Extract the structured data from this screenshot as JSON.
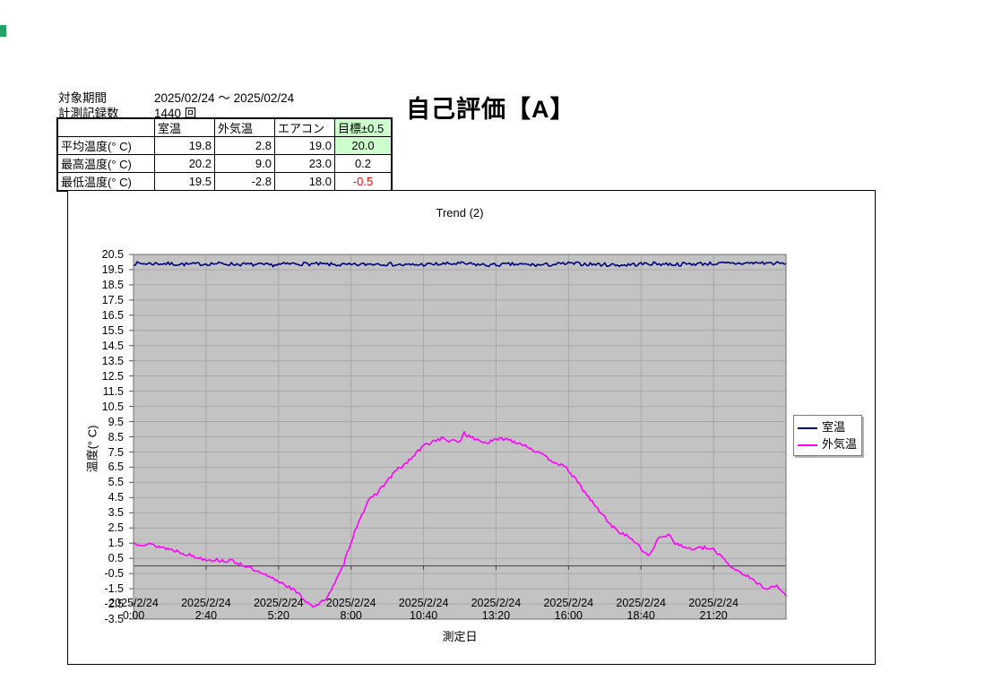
{
  "info": {
    "period_label": "対象期間",
    "period_value": "2025/02/24 ～ 2025/02/24",
    "count_label": "計測記録数",
    "count_value": "1440 回",
    "rating": "自己評価【A】"
  },
  "summary_table": {
    "columns": [
      "",
      "室温",
      "外気温",
      "エアコン",
      "目標±0.5"
    ],
    "rows": [
      {
        "label": "平均温度(° C)",
        "values": [
          "19.8",
          "2.8",
          "19.0",
          "20.0"
        ]
      },
      {
        "label": "最高温度(° C)",
        "values": [
          "20.2",
          "9.0",
          "23.0",
          "0.2"
        ]
      },
      {
        "label": "最低温度(° C)",
        "values": [
          "19.5",
          "-2.8",
          "18.0",
          "-0.5"
        ]
      }
    ],
    "highlight_bg": "#ccffcc",
    "negative_color": "#ff0000"
  },
  "chart_data": {
    "type": "line",
    "title": "Trend (2)",
    "xlabel": "測定日",
    "ylabel": "温度(° C)",
    "ylim": [
      -3.5,
      20.5
    ],
    "y_tick_step": 1.0,
    "x_total_minutes": 1440,
    "grid": true,
    "plot_bg": "#c3c3c3",
    "gridline_color": "#a8a8a8",
    "zero_line_color": "#3f3f3f",
    "border_color": "#707070",
    "legend_position": "right",
    "x_ticks": [
      {
        "minute": 0,
        "date": "2025/2/24",
        "time": "0:00"
      },
      {
        "minute": 160,
        "date": "2025/2/24",
        "time": "2:40"
      },
      {
        "minute": 320,
        "date": "2025/2/24",
        "time": "5:20"
      },
      {
        "minute": 480,
        "date": "2025/2/24",
        "time": "8:00"
      },
      {
        "minute": 640,
        "date": "2025/2/24",
        "time": "10:40"
      },
      {
        "minute": 800,
        "date": "2025/2/24",
        "time": "13:20"
      },
      {
        "minute": 960,
        "date": "2025/2/24",
        "time": "16:00"
      },
      {
        "minute": 1120,
        "date": "2025/2/24",
        "time": "18:40"
      },
      {
        "minute": 1280,
        "date": "2025/2/24",
        "time": "21:20"
      }
    ],
    "series": [
      {
        "name": "室温",
        "color": "#000080",
        "jitter": 0.12,
        "seed": 7,
        "minutes": [
          0,
          60,
          120,
          180,
          240,
          300,
          360,
          420,
          480,
          540,
          600,
          660,
          720,
          780,
          840,
          900,
          960,
          1020,
          1080,
          1140,
          1200,
          1260,
          1320,
          1380,
          1440
        ],
        "values": [
          19.9,
          19.9,
          19.85,
          19.9,
          19.85,
          19.8,
          19.9,
          19.85,
          19.8,
          19.9,
          19.8,
          19.85,
          19.9,
          19.8,
          19.85,
          19.8,
          19.9,
          19.85,
          19.8,
          19.9,
          19.85,
          19.9,
          19.9,
          19.95,
          19.9
        ]
      },
      {
        "name": "外気温",
        "color": "#ff00ff",
        "jitter": 0.12,
        "seed": 13,
        "minutes": [
          0,
          20,
          40,
          60,
          80,
          100,
          120,
          140,
          160,
          180,
          200,
          220,
          240,
          260,
          280,
          300,
          320,
          340,
          360,
          380,
          400,
          420,
          440,
          460,
          480,
          500,
          520,
          540,
          560,
          580,
          600,
          620,
          640,
          660,
          680,
          700,
          720,
          730,
          740,
          760,
          780,
          800,
          820,
          840,
          860,
          880,
          900,
          920,
          940,
          960,
          980,
          1000,
          1020,
          1040,
          1060,
          1080,
          1100,
          1120,
          1140,
          1160,
          1180,
          1200,
          1220,
          1240,
          1260,
          1280,
          1300,
          1320,
          1340,
          1360,
          1380,
          1400,
          1420,
          1440
        ],
        "values": [
          1.5,
          1.45,
          1.4,
          1.25,
          1.1,
          0.95,
          0.75,
          0.55,
          0.45,
          0.4,
          0.35,
          0.3,
          0.1,
          -0.2,
          -0.5,
          -0.75,
          -1.0,
          -1.3,
          -1.75,
          -2.3,
          -2.7,
          -2.3,
          -1.4,
          -0.2,
          1.6,
          3.2,
          4.3,
          4.9,
          5.6,
          6.3,
          6.7,
          7.3,
          7.9,
          8.2,
          8.4,
          8.2,
          8.2,
          8.8,
          8.5,
          8.3,
          8.1,
          8.3,
          8.4,
          8.2,
          8.0,
          7.7,
          7.3,
          7.0,
          6.7,
          6.3,
          5.5,
          4.7,
          3.9,
          3.2,
          2.5,
          2.1,
          1.8,
          1.1,
          0.7,
          1.9,
          2.1,
          1.4,
          1.2,
          1.1,
          1.2,
          1.05,
          0.6,
          -0.1,
          -0.4,
          -0.8,
          -1.2,
          -1.5,
          -1.3,
          -2.0
        ]
      }
    ]
  }
}
